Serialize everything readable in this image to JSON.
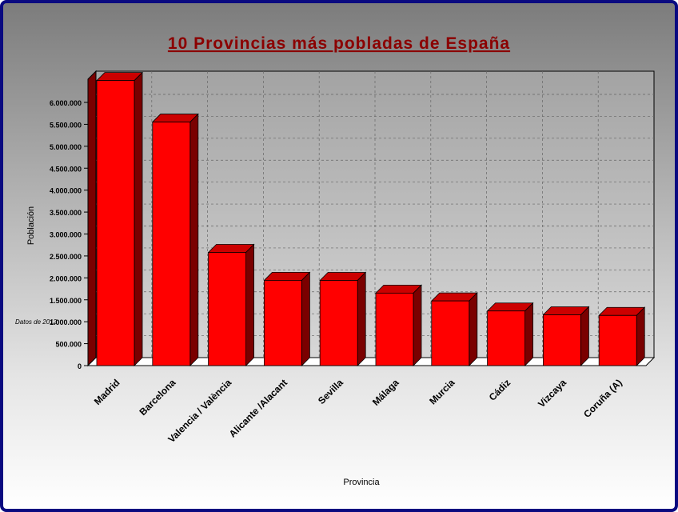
{
  "chart_data": {
    "type": "bar",
    "title": "10 Provincias más pobladas de España",
    "xlabel": "Provincia",
    "ylabel": "Población",
    "annotation": "Datos de 2012",
    "categories": [
      "Madrid",
      "Barcelona",
      "Valencia / València",
      "Alicante /Alacant",
      "Sevilla",
      "Málaga",
      "Murcia",
      "Cádiz",
      "Vizcaya",
      "Coruña (A)"
    ],
    "values": [
      6498560,
      5552050,
      2580792,
      1943910,
      1942389,
      1652999,
      1474449,
      1245164,
      1158439,
      1143911
    ],
    "ylim": [
      0,
      6500000
    ],
    "yticks": [
      0,
      500000,
      1000000,
      1500000,
      2000000,
      2500000,
      3000000,
      3500000,
      4000000,
      4500000,
      5000000,
      5500000,
      6000000
    ],
    "ytick_labels": [
      "0",
      "500.000",
      "1.000.000",
      "1.500.000",
      "2.000.000",
      "2.500.000",
      "3.000.000",
      "3.500.000",
      "4.000.000",
      "4.500.000",
      "5.000.000",
      "5.500.000",
      "6.000.000"
    ],
    "grid": true,
    "colors": {
      "bar_front": "#ff0000",
      "bar_side": "#7a0000",
      "bar_top": "#cc0000",
      "title": "#8b0000",
      "border": "#0a0a80"
    }
  }
}
